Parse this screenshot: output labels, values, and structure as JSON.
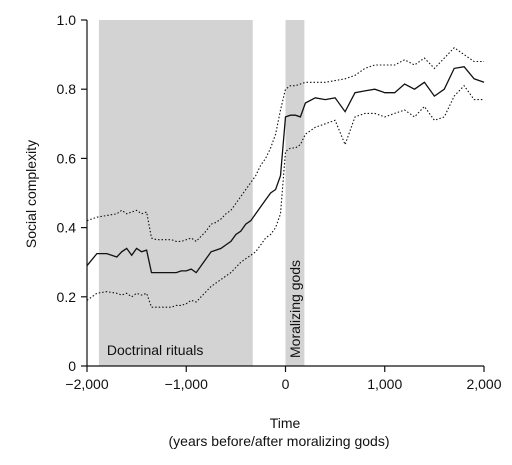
{
  "chart_data": {
    "type": "line",
    "xlabel": "Time",
    "xlabel_sub": "(years before/after moralizing gods)",
    "ylabel": "Social complexity",
    "xlim": [
      -2000,
      2000
    ],
    "ylim": [
      0,
      1.0
    ],
    "x_ticks": [
      -2000,
      -1000,
      0,
      1000,
      2000
    ],
    "x_tick_labels": [
      "−2,000",
      "−1,000",
      "0",
      "1,000",
      "2,000"
    ],
    "y_ticks": [
      0,
      0.2,
      0.4,
      0.6,
      0.8,
      1.0
    ],
    "y_tick_labels": [
      "0",
      "0.2",
      "0.4",
      "0.6",
      "0.8",
      "1.0"
    ],
    "shaded_regions": [
      {
        "label": "Doctrinal rituals",
        "x_start": -1880,
        "x_end": -330,
        "color": "#d3d3d3"
      },
      {
        "label": "Moralizing gods",
        "x_start": 0,
        "x_end": 190,
        "color": "#d3d3d3"
      }
    ],
    "series": [
      {
        "style": "solid",
        "color": "#111111",
        "x": [
          -2000,
          -1900,
          -1800,
          -1700,
          -1650,
          -1600,
          -1550,
          -1500,
          -1450,
          -1400,
          -1350,
          -1300,
          -1250,
          -1200,
          -1150,
          -1100,
          -1050,
          -1000,
          -950,
          -900,
          -850,
          -800,
          -750,
          -700,
          -650,
          -600,
          -550,
          -500,
          -450,
          -400,
          -350,
          -300,
          -250,
          -200,
          -150,
          -100,
          -50,
          0,
          50,
          100,
          150,
          200,
          300,
          400,
          500,
          600,
          700,
          800,
          900,
          1000,
          1100,
          1200,
          1300,
          1400,
          1500,
          1600,
          1700,
          1800,
          1900,
          2000
        ],
        "y": [
          0.29,
          0.325,
          0.325,
          0.315,
          0.33,
          0.34,
          0.32,
          0.34,
          0.33,
          0.335,
          0.27,
          0.27,
          0.27,
          0.27,
          0.27,
          0.27,
          0.275,
          0.275,
          0.28,
          0.27,
          0.29,
          0.31,
          0.33,
          0.335,
          0.34,
          0.35,
          0.36,
          0.38,
          0.39,
          0.41,
          0.42,
          0.44,
          0.46,
          0.48,
          0.5,
          0.51,
          0.55,
          0.72,
          0.725,
          0.725,
          0.72,
          0.76,
          0.775,
          0.77,
          0.775,
          0.735,
          0.79,
          0.795,
          0.8,
          0.79,
          0.79,
          0.815,
          0.8,
          0.82,
          0.78,
          0.8,
          0.86,
          0.865,
          0.83,
          0.82
        ]
      },
      {
        "style": "dotted",
        "color": "#111111",
        "x": [
          -2000,
          -1900,
          -1800,
          -1700,
          -1650,
          -1600,
          -1550,
          -1500,
          -1450,
          -1400,
          -1350,
          -1300,
          -1250,
          -1200,
          -1150,
          -1100,
          -1050,
          -1000,
          -950,
          -900,
          -850,
          -800,
          -750,
          -700,
          -650,
          -600,
          -550,
          -500,
          -450,
          -400,
          -350,
          -300,
          -250,
          -200,
          -150,
          -100,
          -50,
          0,
          50,
          100,
          150,
          200,
          300,
          400,
          500,
          600,
          700,
          800,
          900,
          1000,
          1100,
          1200,
          1300,
          1400,
          1500,
          1600,
          1700,
          1800,
          1900,
          2000
        ],
        "y": [
          0.42,
          0.43,
          0.435,
          0.44,
          0.45,
          0.44,
          0.445,
          0.45,
          0.44,
          0.445,
          0.37,
          0.365,
          0.365,
          0.365,
          0.365,
          0.36,
          0.36,
          0.365,
          0.37,
          0.36,
          0.375,
          0.39,
          0.41,
          0.415,
          0.425,
          0.44,
          0.45,
          0.47,
          0.49,
          0.51,
          0.53,
          0.55,
          0.58,
          0.6,
          0.63,
          0.67,
          0.74,
          0.8,
          0.81,
          0.81,
          0.815,
          0.82,
          0.82,
          0.82,
          0.825,
          0.83,
          0.84,
          0.86,
          0.87,
          0.87,
          0.87,
          0.885,
          0.87,
          0.89,
          0.86,
          0.89,
          0.92,
          0.9,
          0.88,
          0.88
        ]
      },
      {
        "style": "dotted",
        "color": "#111111",
        "x": [
          -2000,
          -1900,
          -1800,
          -1700,
          -1650,
          -1600,
          -1550,
          -1500,
          -1450,
          -1400,
          -1350,
          -1300,
          -1250,
          -1200,
          -1150,
          -1100,
          -1050,
          -1000,
          -950,
          -900,
          -850,
          -800,
          -750,
          -700,
          -650,
          -600,
          -550,
          -500,
          -450,
          -400,
          -350,
          -300,
          -250,
          -200,
          -150,
          -100,
          -50,
          0,
          50,
          100,
          150,
          200,
          300,
          400,
          500,
          600,
          700,
          800,
          900,
          1000,
          1100,
          1200,
          1300,
          1400,
          1500,
          1600,
          1700,
          1800,
          1900,
          2000
        ],
        "y": [
          0.19,
          0.21,
          0.215,
          0.21,
          0.205,
          0.21,
          0.2,
          0.21,
          0.205,
          0.21,
          0.17,
          0.17,
          0.17,
          0.17,
          0.17,
          0.175,
          0.175,
          0.18,
          0.19,
          0.185,
          0.2,
          0.215,
          0.23,
          0.24,
          0.25,
          0.26,
          0.27,
          0.285,
          0.3,
          0.31,
          0.32,
          0.33,
          0.35,
          0.37,
          0.38,
          0.4,
          0.44,
          0.62,
          0.63,
          0.63,
          0.64,
          0.67,
          0.69,
          0.7,
          0.71,
          0.64,
          0.72,
          0.73,
          0.73,
          0.72,
          0.73,
          0.74,
          0.72,
          0.75,
          0.71,
          0.72,
          0.78,
          0.81,
          0.77,
          0.77
        ]
      }
    ]
  }
}
